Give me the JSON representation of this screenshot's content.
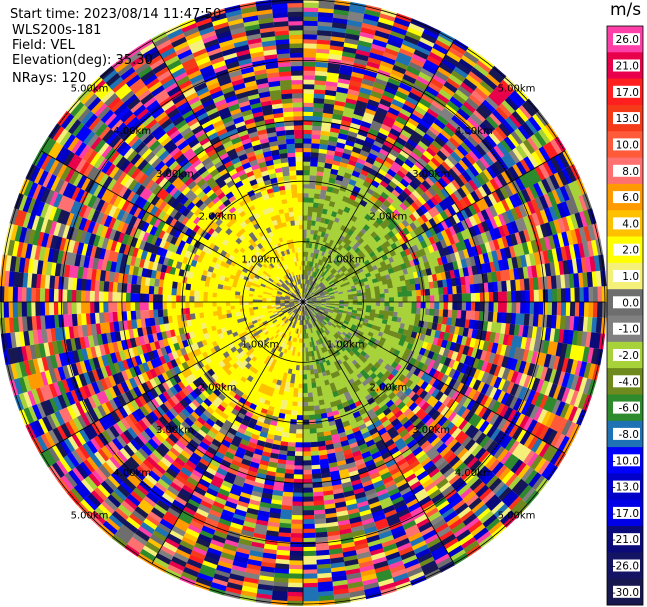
{
  "header": {
    "start_time": "Start time: 2023/08/14 11:47:50",
    "instrument": "WLS200s-181",
    "field": "Field: VEL",
    "elevation": "Elevation(deg): 35.30",
    "nrays": "NRays: 120"
  },
  "colorbar": {
    "unit": "m/s",
    "ticks": [
      "26.0",
      "21.0",
      "17.0",
      "13.0",
      "10.0",
      "8.0",
      "6.0",
      "4.0",
      "2.0",
      "1.0",
      "0.0",
      "-1.0",
      "-2.0",
      "-4.0",
      "-6.0",
      "-8.0",
      "-10.0",
      "-13.0",
      "-17.0",
      "-21.0",
      "-26.0",
      "-30.0"
    ],
    "colors": [
      "#ff3fa8",
      "#e8004a",
      "#ff1f1f",
      "#f53a1a",
      "#ff5a3a",
      "#ff7070",
      "#ff9a00",
      "#ffc000",
      "#ffff00",
      "#f5f07a",
      "#6e6e6e",
      "#808080",
      "#a8d23a",
      "#6e8a1e",
      "#2d8a2d",
      "#1f73b4",
      "#0000ff",
      "#0000c8",
      "#0000e6",
      "#0a0a78",
      "#141464",
      "#181850"
    ]
  },
  "chart_data": {
    "type": "ppi",
    "field": "VEL",
    "rays": 120,
    "range_rings_km": [
      1.0,
      2.0,
      3.0,
      4.0,
      5.0
    ],
    "ring_labels": [
      "1.00km",
      "2.00km",
      "3.00km",
      "4.00km",
      "5.00km"
    ],
    "azimuth_lines_deg": [
      0,
      30,
      60,
      90,
      120,
      150,
      180,
      210,
      240,
      270,
      300,
      330
    ],
    "value_range": [
      -30.0,
      26.0
    ]
  }
}
